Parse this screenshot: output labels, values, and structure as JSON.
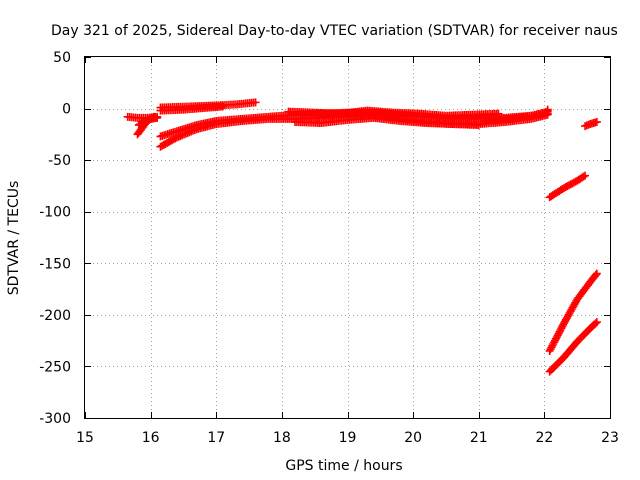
{
  "chart_data": {
    "type": "scatter",
    "title": "Day 321 of 2025, Sidereal Day-to-day VTEC variation (SDTVAR) for receiver naus",
    "xlabel": "GPS time / hours",
    "ylabel": "SDTVAR / TECUs",
    "xlim": [
      15,
      23
    ],
    "ylim": [
      -300,
      50
    ],
    "xticks": [
      15,
      16,
      17,
      18,
      19,
      20,
      21,
      22,
      23
    ],
    "yticks": [
      -300,
      -250,
      -200,
      -150,
      -100,
      -50,
      0,
      50
    ],
    "grid": true,
    "marker": "plus",
    "color": "#ff0000",
    "series": [
      {
        "values": [
          [
            15.65,
            -8
          ],
          [
            15.8,
            -9
          ],
          [
            15.95,
            -9
          ],
          [
            16.1,
            -8
          ]
        ]
      },
      {
        "values": [
          [
            15.8,
            -25
          ],
          [
            15.88,
            -18
          ],
          [
            15.95,
            -12
          ],
          [
            16.05,
            -8
          ]
        ]
      },
      {
        "values": [
          [
            15.82,
            -16
          ],
          [
            15.9,
            -13
          ],
          [
            16.0,
            -10
          ],
          [
            16.1,
            -9
          ]
        ]
      },
      {
        "values": [
          [
            16.15,
            1
          ],
          [
            16.6,
            2
          ],
          [
            17.0,
            3
          ],
          [
            17.3,
            4
          ],
          [
            17.6,
            6
          ]
        ]
      },
      {
        "values": [
          [
            16.15,
            -2
          ],
          [
            16.5,
            -1
          ],
          [
            16.9,
            1
          ],
          [
            17.1,
            2
          ]
        ]
      },
      {
        "values": [
          [
            16.15,
            -27
          ],
          [
            16.4,
            -22
          ],
          [
            16.7,
            -16
          ],
          [
            17.0,
            -12
          ],
          [
            17.4,
            -10
          ],
          [
            17.8,
            -8
          ],
          [
            18.2,
            -6
          ],
          [
            18.6,
            -5
          ],
          [
            19.0,
            -4
          ],
          [
            19.4,
            -4
          ],
          [
            19.8,
            -6
          ],
          [
            20.2,
            -8
          ],
          [
            20.6,
            -10
          ],
          [
            21.0,
            -10
          ],
          [
            21.4,
            -9
          ],
          [
            21.8,
            -7
          ],
          [
            22.05,
            -5
          ]
        ]
      },
      {
        "values": [
          [
            16.15,
            -37
          ],
          [
            16.4,
            -28
          ],
          [
            16.7,
            -20
          ],
          [
            17.0,
            -15
          ],
          [
            17.4,
            -12
          ],
          [
            17.8,
            -10
          ],
          [
            18.2,
            -10
          ],
          [
            18.6,
            -9
          ],
          [
            19.0,
            -8
          ],
          [
            19.4,
            -7
          ],
          [
            19.8,
            -10
          ],
          [
            20.2,
            -13
          ],
          [
            20.6,
            -15
          ],
          [
            21.0,
            -15
          ],
          [
            21.4,
            -13
          ],
          [
            21.8,
            -10
          ],
          [
            22.05,
            -6
          ]
        ]
      },
      {
        "values": [
          [
            18.1,
            -3
          ],
          [
            18.5,
            -4
          ],
          [
            18.9,
            -5
          ],
          [
            19.3,
            -2
          ],
          [
            19.7,
            -4
          ],
          [
            20.1,
            -5
          ],
          [
            20.5,
            -7
          ],
          [
            20.9,
            -6
          ],
          [
            21.3,
            -5
          ]
        ]
      },
      {
        "values": [
          [
            18.2,
            -13
          ],
          [
            18.6,
            -14
          ],
          [
            19.0,
            -11
          ],
          [
            19.4,
            -9
          ],
          [
            19.8,
            -12
          ],
          [
            20.2,
            -14
          ],
          [
            20.6,
            -15
          ],
          [
            21.0,
            -16
          ]
        ]
      },
      {
        "values": [
          [
            21.1,
            -12
          ],
          [
            21.5,
            -10
          ],
          [
            21.8,
            -7
          ],
          [
            22.05,
            -3
          ],
          [
            22.05,
            -1
          ]
        ]
      },
      {
        "values": [
          [
            22.08,
            -86
          ],
          [
            22.3,
            -77
          ],
          [
            22.5,
            -70
          ],
          [
            22.62,
            -65
          ]
        ]
      },
      {
        "values": [
          [
            22.62,
            -17
          ],
          [
            22.7,
            -15
          ],
          [
            22.8,
            -13
          ]
        ]
      },
      {
        "values": [
          [
            22.08,
            -235
          ],
          [
            22.3,
            -208
          ],
          [
            22.5,
            -185
          ],
          [
            22.7,
            -168
          ],
          [
            22.8,
            -160
          ]
        ]
      },
      {
        "values": [
          [
            22.08,
            -255
          ],
          [
            22.3,
            -241
          ],
          [
            22.5,
            -226
          ],
          [
            22.7,
            -213
          ],
          [
            22.8,
            -207
          ]
        ]
      }
    ]
  }
}
